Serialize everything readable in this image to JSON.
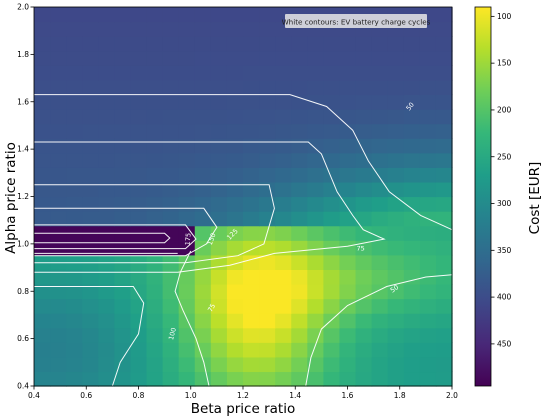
{
  "chart_data": {
    "type": "heatmap",
    "xlabel": "Beta price ratio",
    "ylabel": "Alpha price ratio",
    "xlim": [
      0.4,
      2.0
    ],
    "ylim": [
      0.4,
      2.0
    ],
    "xticks": [
      "0.4",
      "0.6",
      "0.8",
      "1.0",
      "1.2",
      "1.4",
      "1.6",
      "1.8",
      "2.0"
    ],
    "yticks": [
      "0.4",
      "0.6",
      "0.8",
      "1.0",
      "1.2",
      "1.4",
      "1.6",
      "1.8",
      "2.0"
    ],
    "colorbar": {
      "label": "Cost [EUR]",
      "range": [
        90,
        495
      ],
      "reversed": true,
      "ticks": [
        "100",
        "150",
        "200",
        "250",
        "300",
        "350",
        "400",
        "450"
      ],
      "colormap": [
        "#fde725",
        "#b5de2b",
        "#6ece58",
        "#35b779",
        "#1f9e89",
        "#26828e",
        "#31688e",
        "#3e4989",
        "#482878",
        "#440154"
      ]
    },
    "annotation": "White contours: EV battery charge cycles",
    "contour_labels": [
      "50",
      "75",
      "100",
      "125",
      "150",
      "175",
      "50",
      "75"
    ],
    "contour_color": "#ffffff",
    "grid": false
  }
}
